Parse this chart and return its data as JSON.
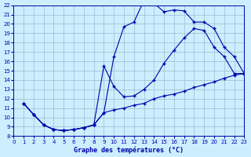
{
  "xlabel": "Graphe des températures (°C)",
  "xlim": [
    0,
    23
  ],
  "ylim": [
    8,
    22
  ],
  "yticks": [
    8,
    9,
    10,
    11,
    12,
    13,
    14,
    15,
    16,
    17,
    18,
    19,
    20,
    21,
    22
  ],
  "xticks": [
    0,
    1,
    2,
    3,
    4,
    5,
    6,
    7,
    8,
    9,
    10,
    11,
    12,
    13,
    14,
    15,
    16,
    17,
    18,
    19,
    20,
    21,
    22,
    23
  ],
  "bg_color": "#cceeff",
  "grid_color": "#99bbcc",
  "line_color": "#0000aa",
  "curve1_x": [
    1,
    2,
    3,
    4,
    5,
    6,
    7,
    8,
    9,
    10,
    11,
    12,
    13,
    14,
    15,
    16,
    17,
    18,
    19,
    20,
    21,
    22,
    23
  ],
  "curve1_y": [
    11.5,
    10.3,
    9.2,
    8.7,
    8.6,
    8.7,
    8.9,
    9.2,
    10.5,
    16.5,
    19.7,
    20.2,
    22.5,
    22.2,
    21.3,
    21.5,
    21.4,
    20.2,
    20.2,
    19.5,
    17.5,
    16.5,
    14.7
  ],
  "curve2_x": [
    1,
    2,
    3,
    4,
    5,
    6,
    7,
    8,
    9,
    10,
    11,
    12,
    13,
    14,
    15,
    16,
    17,
    18,
    19,
    20,
    21,
    22,
    23
  ],
  "curve2_y": [
    11.5,
    10.3,
    9.2,
    8.7,
    8.6,
    8.7,
    8.9,
    9.2,
    15.5,
    13.3,
    12.2,
    12.3,
    13.0,
    14.0,
    15.8,
    17.2,
    18.5,
    19.5,
    19.3,
    17.5,
    16.5,
    14.7,
    14.7
  ],
  "curve3_x": [
    1,
    2,
    3,
    4,
    5,
    6,
    7,
    8,
    9,
    10,
    11,
    12,
    13,
    14,
    15,
    16,
    17,
    18,
    19,
    20,
    21,
    22,
    23
  ],
  "curve3_y": [
    11.5,
    10.3,
    9.2,
    8.7,
    8.6,
    8.7,
    8.9,
    9.2,
    10.5,
    10.8,
    11.0,
    11.3,
    11.5,
    12.0,
    12.3,
    12.5,
    12.8,
    13.2,
    13.5,
    13.8,
    14.2,
    14.5,
    14.7
  ]
}
